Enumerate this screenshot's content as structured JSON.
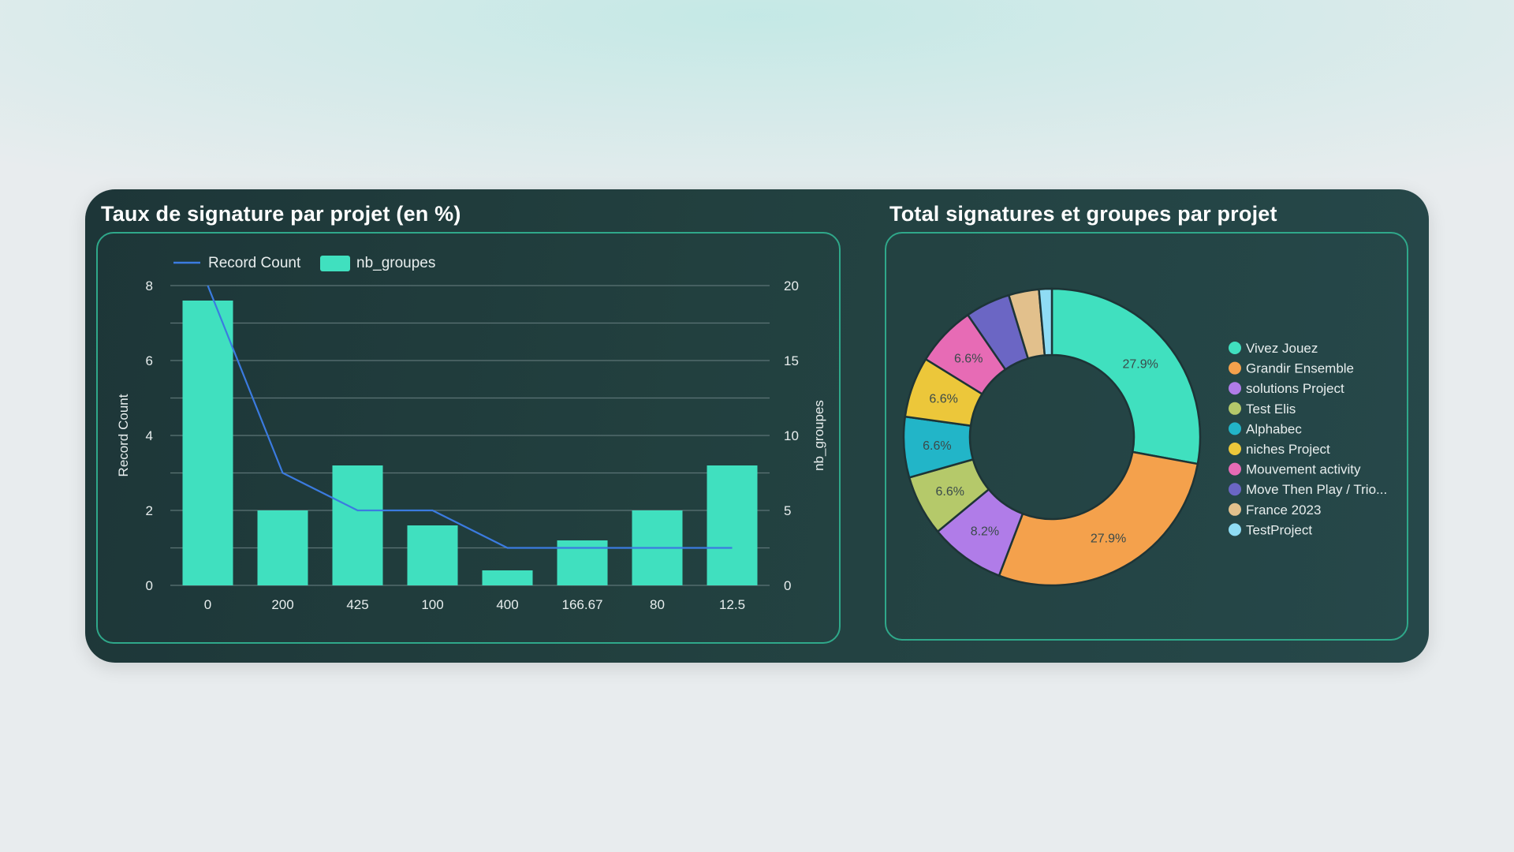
{
  "dashboard": {
    "left_title": "Taux de signature par projet (en %)",
    "right_title": "Total signatures et groupes par projet"
  },
  "colors": {
    "bar": "#40e0bf",
    "line": "#3b7be0",
    "panel_border": "#2fa88a",
    "grid": "#5c7476",
    "text": "#e8eeee"
  },
  "chart_data": [
    {
      "type": "bar",
      "title": "Taux de signature par projet (en %)",
      "categories": [
        "0",
        "200",
        "425",
        "100",
        "400",
        "166.67",
        "80",
        "12.5"
      ],
      "series": [
        {
          "name": "Record Count",
          "type": "line",
          "axis": "right",
          "values": [
            20,
            7.5,
            5,
            5,
            2.5,
            2.5,
            2.5,
            2.5
          ],
          "color": "#3b7be0"
        },
        {
          "name": "nb_groupes",
          "type": "bar",
          "axis": "left",
          "values": [
            7.6,
            2,
            3.2,
            1.6,
            0.4,
            1.2,
            2,
            3.2
          ],
          "color": "#40e0bf"
        }
      ],
      "ylabel": "Record Count",
      "y2label": "nb_groupes",
      "ylim": [
        0,
        8
      ],
      "y2lim": [
        0,
        20
      ],
      "yticks": [
        "0",
        "2",
        "4",
        "6",
        "8"
      ],
      "y2ticks": [
        "0",
        "5",
        "10",
        "15",
        "20"
      ],
      "grid": true,
      "legend_position": "top-left"
    },
    {
      "type": "pie",
      "donut": true,
      "title": "Total signatures et groupes par projet",
      "labels": [
        "Vivez Jouez",
        "Grandir Ensemble",
        "solutions Project",
        "Test Elis",
        "Alphabec",
        "niches Project",
        "Mouvement activity",
        "Move Then Play / Trio...",
        "France 2023",
        "TestProject"
      ],
      "values": [
        27.9,
        27.9,
        8.2,
        6.6,
        6.6,
        6.6,
        6.6,
        4.9,
        3.3,
        1.4
      ],
      "value_labels": [
        "27.9%",
        "27.9%",
        "8.2%",
        "6.6%",
        "6.6%",
        "6.6%",
        "6.6%",
        "",
        "",
        ""
      ],
      "colors": [
        "#40e0bf",
        "#f4a14c",
        "#b07ce8",
        "#b5c96a",
        "#22b5c8",
        "#ecc73a",
        "#e76bb5",
        "#6b66c4",
        "#e2c08c",
        "#8fdcf4"
      ],
      "legend_position": "right"
    }
  ]
}
